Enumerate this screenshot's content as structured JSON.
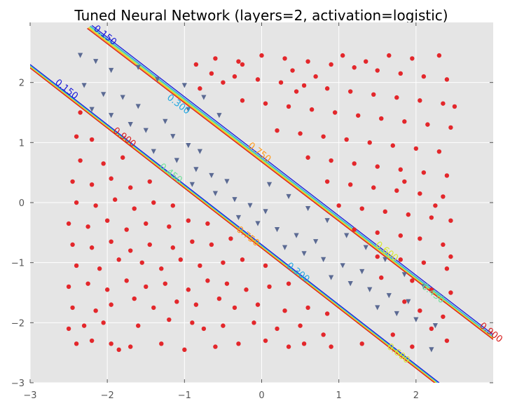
{
  "chart_data": {
    "type": "scatter",
    "title": "Tuned Neural Network (layers=2, activation=logistic)",
    "xlabel": "",
    "ylabel": "",
    "xlim": [
      -3,
      3
    ],
    "ylim": [
      -3,
      3
    ],
    "x_ticks": [
      -3,
      -2,
      -1,
      0,
      1,
      2
    ],
    "y_ticks": [
      -3,
      -2,
      -1,
      0,
      1,
      2
    ],
    "x_tick_labels": [
      "−3",
      "−2",
      "−1",
      "0",
      "1",
      "2"
    ],
    "y_tick_labels": [
      "−3",
      "−2",
      "−1",
      "0",
      "1",
      "2"
    ],
    "grid": true,
    "background": "#e5e5e5",
    "series": [
      {
        "marker": "circle",
        "color": "#e3272b",
        "points": [
          [
            -2.4,
            -2.35
          ],
          [
            -2.2,
            -2.3
          ],
          [
            -1.95,
            -2.35
          ],
          [
            -1.85,
            -2.45
          ],
          [
            -1.7,
            -2.4
          ],
          [
            -1.3,
            -2.35
          ],
          [
            -1.0,
            -2.45
          ],
          [
            -0.6,
            -2.4
          ],
          [
            -0.3,
            -2.35
          ],
          [
            0.05,
            -2.3
          ],
          [
            0.35,
            -2.4
          ],
          [
            0.55,
            -2.35
          ],
          [
            0.9,
            -2.4
          ],
          [
            1.3,
            -2.35
          ],
          [
            -2.5,
            -2.1
          ],
          [
            -2.3,
            -2.05
          ],
          [
            -2.05,
            -2.0
          ],
          [
            -1.6,
            -2.05
          ],
          [
            -1.2,
            -1.95
          ],
          [
            -0.9,
            -2.0
          ],
          [
            -0.75,
            -2.1
          ],
          [
            -0.5,
            -2.05
          ],
          [
            -0.1,
            -2.0
          ],
          [
            0.2,
            -2.1
          ],
          [
            0.5,
            -2.05
          ],
          [
            0.8,
            -2.2
          ],
          [
            -2.45,
            -1.75
          ],
          [
            -2.15,
            -1.8
          ],
          [
            -1.95,
            -1.7
          ],
          [
            -1.65,
            -1.6
          ],
          [
            -1.4,
            -1.75
          ],
          [
            -1.1,
            -1.65
          ],
          [
            -0.85,
            -1.7
          ],
          [
            -0.55,
            -1.6
          ],
          [
            -0.35,
            -1.75
          ],
          [
            -0.05,
            -1.7
          ],
          [
            0.3,
            -1.8
          ],
          [
            0.6,
            -1.75
          ],
          [
            0.85,
            -1.85
          ],
          [
            -2.5,
            -1.4
          ],
          [
            -2.25,
            -1.35
          ],
          [
            -2.0,
            -1.45
          ],
          [
            -1.75,
            -1.3
          ],
          [
            -1.5,
            -1.4
          ],
          [
            -1.25,
            -1.35
          ],
          [
            -0.95,
            -1.45
          ],
          [
            -0.7,
            -1.3
          ],
          [
            -0.45,
            -1.35
          ],
          [
            -0.2,
            -1.45
          ],
          [
            0.1,
            -1.4
          ],
          [
            0.35,
            -1.35
          ],
          [
            -2.4,
            -1.05
          ],
          [
            -2.1,
            -1.1
          ],
          [
            -1.85,
            -0.95
          ],
          [
            -1.55,
            -1.0
          ],
          [
            -1.3,
            -1.1
          ],
          [
            -1.05,
            -0.95
          ],
          [
            -0.8,
            -1.05
          ],
          [
            -0.5,
            -1.0
          ],
          [
            -0.25,
            -0.95
          ],
          [
            0.05,
            -1.05
          ],
          [
            -2.45,
            -0.7
          ],
          [
            -2.2,
            -0.75
          ],
          [
            -1.95,
            -0.65
          ],
          [
            -1.7,
            -0.8
          ],
          [
            -1.45,
            -0.7
          ],
          [
            -1.15,
            -0.75
          ],
          [
            -0.9,
            -0.65
          ],
          [
            -0.65,
            -0.7
          ],
          [
            -0.4,
            -0.6
          ],
          [
            -2.5,
            -0.35
          ],
          [
            -2.25,
            -0.4
          ],
          [
            -2.0,
            -0.3
          ],
          [
            -1.75,
            -0.45
          ],
          [
            -1.5,
            -0.35
          ],
          [
            -1.2,
            -0.4
          ],
          [
            -0.95,
            -0.3
          ],
          [
            -0.7,
            -0.35
          ],
          [
            -2.4,
            0.0
          ],
          [
            -2.15,
            -0.05
          ],
          [
            -1.9,
            0.05
          ],
          [
            -1.65,
            -0.1
          ],
          [
            -1.4,
            0.0
          ],
          [
            -1.15,
            -0.05
          ],
          [
            -2.45,
            0.35
          ],
          [
            -2.2,
            0.3
          ],
          [
            -1.95,
            0.4
          ],
          [
            -1.7,
            0.25
          ],
          [
            -1.45,
            0.35
          ],
          [
            -2.35,
            0.7
          ],
          [
            -2.05,
            0.65
          ],
          [
            -1.8,
            0.75
          ],
          [
            -2.4,
            1.1
          ],
          [
            -2.2,
            1.05
          ],
          [
            -2.35,
            1.5
          ],
          [
            2.4,
            -2.3
          ],
          [
            2.2,
            -2.1
          ],
          [
            1.95,
            -2.4
          ],
          [
            1.7,
            -2.2
          ],
          [
            2.35,
            -1.9
          ],
          [
            2.05,
            -1.8
          ],
          [
            1.85,
            -1.65
          ],
          [
            2.45,
            -1.5
          ],
          [
            2.2,
            -1.45
          ],
          [
            1.95,
            -1.3
          ],
          [
            1.55,
            -1.25
          ],
          [
            2.4,
            -1.1
          ],
          [
            2.1,
            -1.0
          ],
          [
            1.8,
            -0.95
          ],
          [
            1.5,
            -0.9
          ],
          [
            2.35,
            -0.7
          ],
          [
            2.05,
            -0.6
          ],
          [
            1.8,
            -0.55
          ],
          [
            1.5,
            -0.5
          ],
          [
            1.2,
            -0.45
          ],
          [
            2.45,
            -0.3
          ],
          [
            2.2,
            -0.25
          ],
          [
            1.9,
            -0.2
          ],
          [
            1.6,
            -0.15
          ],
          [
            1.3,
            -0.1
          ],
          [
            1.0,
            -0.05
          ],
          [
            2.35,
            0.1
          ],
          [
            2.05,
            0.15
          ],
          [
            1.75,
            0.2
          ],
          [
            1.45,
            0.25
          ],
          [
            1.15,
            0.3
          ],
          [
            0.85,
            0.35
          ],
          [
            2.4,
            0.45
          ],
          [
            2.1,
            0.5
          ],
          [
            1.8,
            0.55
          ],
          [
            1.5,
            0.6
          ],
          [
            1.2,
            0.65
          ],
          [
            0.9,
            0.7
          ],
          [
            0.6,
            0.75
          ],
          [
            2.3,
            0.85
          ],
          [
            2.0,
            0.9
          ],
          [
            1.7,
            0.95
          ],
          [
            1.4,
            1.0
          ],
          [
            1.1,
            1.05
          ],
          [
            0.8,
            1.1
          ],
          [
            0.5,
            1.15
          ],
          [
            0.2,
            1.2
          ],
          [
            2.45,
            1.25
          ],
          [
            2.15,
            1.3
          ],
          [
            1.85,
            1.35
          ],
          [
            1.55,
            1.4
          ],
          [
            1.25,
            1.45
          ],
          [
            0.95,
            1.5
          ],
          [
            0.65,
            1.55
          ],
          [
            0.35,
            1.6
          ],
          [
            0.05,
            1.65
          ],
          [
            -0.25,
            1.7
          ],
          [
            2.35,
            1.65
          ],
          [
            2.05,
            1.7
          ],
          [
            1.75,
            1.75
          ],
          [
            1.45,
            1.8
          ],
          [
            1.15,
            1.85
          ],
          [
            0.85,
            1.9
          ],
          [
            0.55,
            1.95
          ],
          [
            0.25,
            2.0
          ],
          [
            -0.05,
            2.05
          ],
          [
            -0.35,
            2.1
          ],
          [
            -0.65,
            2.15
          ],
          [
            2.4,
            2.05
          ],
          [
            2.1,
            2.1
          ],
          [
            1.8,
            2.15
          ],
          [
            1.5,
            2.2
          ],
          [
            1.2,
            2.25
          ],
          [
            0.9,
            2.3
          ],
          [
            0.6,
            2.35
          ],
          [
            0.3,
            2.4
          ],
          [
            0.0,
            2.45
          ],
          [
            -0.3,
            2.35
          ],
          [
            -0.6,
            2.4
          ],
          [
            -0.85,
            2.3
          ],
          [
            2.3,
            2.45
          ],
          [
            1.95,
            2.4
          ],
          [
            1.65,
            2.45
          ],
          [
            1.35,
            2.35
          ],
          [
            1.05,
            2.45
          ],
          [
            0.7,
            2.1
          ],
          [
            0.4,
            2.2
          ],
          [
            -0.5,
            2.0
          ],
          [
            -0.8,
            1.9
          ],
          [
            -0.25,
            2.3
          ],
          [
            0.45,
            1.85
          ],
          [
            1.85,
            0.35
          ],
          [
            2.25,
            -0.05
          ],
          [
            2.5,
            1.6
          ],
          [
            2.45,
            -0.9
          ]
        ]
      },
      {
        "marker": "triangle-down",
        "color": "#5b6a93",
        "points": [
          [
            -2.35,
            2.45
          ],
          [
            -2.15,
            2.35
          ],
          [
            -1.95,
            2.2
          ],
          [
            -2.3,
            1.95
          ],
          [
            -2.05,
            1.8
          ],
          [
            -1.8,
            1.75
          ],
          [
            -1.6,
            1.6
          ],
          [
            -2.2,
            1.55
          ],
          [
            -1.95,
            1.45
          ],
          [
            -1.7,
            1.3
          ],
          [
            -1.5,
            1.2
          ],
          [
            -1.25,
            1.35
          ],
          [
            -1.15,
            1.1
          ],
          [
            -0.95,
            0.95
          ],
          [
            -0.8,
            0.85
          ],
          [
            -1.4,
            0.85
          ],
          [
            -1.1,
            0.7
          ],
          [
            -0.85,
            0.55
          ],
          [
            -0.65,
            0.45
          ],
          [
            -0.45,
            0.35
          ],
          [
            -0.9,
            0.3
          ],
          [
            -0.6,
            0.15
          ],
          [
            -0.35,
            0.05
          ],
          [
            -0.15,
            -0.05
          ],
          [
            0.05,
            -0.15
          ],
          [
            -0.3,
            -0.25
          ],
          [
            -0.05,
            -0.35
          ],
          [
            0.2,
            -0.45
          ],
          [
            0.45,
            -0.55
          ],
          [
            0.7,
            -0.65
          ],
          [
            0.3,
            -0.75
          ],
          [
            0.55,
            -0.85
          ],
          [
            0.8,
            -0.95
          ],
          [
            1.05,
            -1.05
          ],
          [
            1.3,
            -1.15
          ],
          [
            0.9,
            -1.25
          ],
          [
            1.15,
            -1.35
          ],
          [
            1.4,
            -1.45
          ],
          [
            1.65,
            -1.55
          ],
          [
            1.9,
            -1.65
          ],
          [
            1.5,
            -1.75
          ],
          [
            1.75,
            -1.85
          ],
          [
            2.0,
            -1.95
          ],
          [
            2.25,
            -2.05
          ],
          [
            2.2,
            -2.45
          ],
          [
            -1.0,
            1.95
          ],
          [
            -0.75,
            1.75
          ],
          [
            -1.35,
            2.05
          ],
          [
            -0.55,
            1.45
          ],
          [
            0.1,
            0.3
          ],
          [
            0.35,
            0.1
          ],
          [
            0.6,
            -0.1
          ],
          [
            0.85,
            -0.3
          ],
          [
            1.1,
            -0.55
          ],
          [
            1.35,
            -0.75
          ],
          [
            1.6,
            -0.95
          ],
          [
            1.85,
            -1.2
          ],
          [
            2.1,
            -1.4
          ],
          [
            -1.6,
            2.25
          ],
          [
            -0.95,
            1.55
          ]
        ]
      }
    ],
    "contour_lines": [
      {
        "label": "0.150",
        "color": "#1a1ad8",
        "from": [
          -2.2,
          2.95
        ],
        "to": [
          3.0,
          -2.2
        ]
      },
      {
        "label": "0.300",
        "color": "#22a7e0",
        "from": [
          -2.22,
          2.94
        ],
        "to": [
          3.0,
          -2.23
        ]
      },
      {
        "label": "0.450",
        "color": "#6fe09a",
        "from": [
          -2.23,
          2.93
        ],
        "to": [
          3.0,
          -2.25
        ]
      },
      {
        "label": "0.600",
        "color": "#d7e832",
        "from": [
          -2.24,
          2.92
        ],
        "to": [
          3.0,
          -2.26
        ]
      },
      {
        "label": "0.750",
        "color": "#ff9a1a",
        "from": [
          -2.25,
          2.91
        ],
        "to": [
          3.0,
          -2.27
        ]
      },
      {
        "label": "0.900",
        "color": "#d82020",
        "from": [
          -2.26,
          2.9
        ],
        "to": [
          3.0,
          -2.28
        ]
      },
      {
        "label": "0.150",
        "color": "#1a1ad8",
        "from": [
          -3.0,
          2.3
        ],
        "to": [
          2.3,
          -3.0
        ]
      },
      {
        "label": "0.300",
        "color": "#22a7e0",
        "from": [
          -3.0,
          2.28
        ],
        "to": [
          2.28,
          -3.0
        ]
      },
      {
        "label": "0.450",
        "color": "#6fe09a",
        "from": [
          -3.0,
          2.27
        ],
        "to": [
          2.27,
          -3.0
        ]
      },
      {
        "label": "0.600",
        "color": "#d7e832",
        "from": [
          -3.0,
          2.26
        ],
        "to": [
          2.26,
          -3.0
        ]
      },
      {
        "label": "0.750",
        "color": "#ff9a1a",
        "from": [
          -3.0,
          2.25
        ],
        "to": [
          2.25,
          -3.0
        ]
      },
      {
        "label": "0.900",
        "color": "#d82020",
        "from": [
          -3.0,
          2.24
        ],
        "to": [
          2.24,
          -3.0
        ]
      }
    ],
    "contour_labels": [
      {
        "text": "0.150",
        "color": "#1a1ad8",
        "x": -2.05,
        "y": 2.75
      },
      {
        "text": "0.300",
        "color": "#22a7e0",
        "x": -1.1,
        "y": 1.6
      },
      {
        "text": "0.750",
        "color": "#ff9a1a",
        "x": -0.05,
        "y": 0.8
      },
      {
        "text": "0.600",
        "color": "#d7e832",
        "x": 1.6,
        "y": -0.85
      },
      {
        "text": "0.450",
        "color": "#6fe09a",
        "x": 2.2,
        "y": -1.55
      },
      {
        "text": "0.900",
        "color": "#d82020",
        "x": 2.95,
        "y": -2.2
      },
      {
        "text": "0.150",
        "color": "#1a1ad8",
        "x": -2.55,
        "y": 1.85
      },
      {
        "text": "0.900",
        "color": "#d82020",
        "x": -1.8,
        "y": 1.05
      },
      {
        "text": "0.450",
        "color": "#6fe09a",
        "x": -1.2,
        "y": 0.45
      },
      {
        "text": "0.750",
        "color": "#ff9a1a",
        "x": -0.2,
        "y": -0.6
      },
      {
        "text": "0.300",
        "color": "#22a7e0",
        "x": 0.45,
        "y": -1.2
      },
      {
        "text": "0.600",
        "color": "#d7e832",
        "x": 1.75,
        "y": -2.55
      }
    ]
  }
}
